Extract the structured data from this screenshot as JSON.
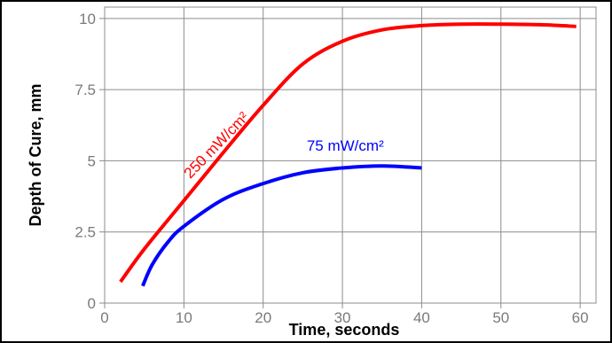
{
  "chart_data": {
    "type": "line",
    "title": "",
    "xlabel": "Time, seconds",
    "ylabel": "Depth of Cure, mm",
    "xlim": [
      0,
      62
    ],
    "ylim": [
      0,
      10.4
    ],
    "x_ticks": [
      0,
      10,
      20,
      30,
      40,
      50,
      60
    ],
    "x_tick_labels": [
      "0",
      "10",
      "20",
      "30",
      "40",
      "50",
      "60"
    ],
    "y_ticks": [
      0,
      2.5,
      5,
      7.5,
      10
    ],
    "y_tick_labels": [
      "0",
      "2.5",
      "5",
      "7.5",
      "10"
    ],
    "grid": true,
    "legend": "none",
    "series": [
      {
        "name": "250 mW/cm²",
        "color": "#ff0000",
        "x": [
          2,
          5,
          10,
          15,
          20,
          25,
          30,
          35,
          40,
          45,
          50,
          55,
          59.5
        ],
        "y": [
          0.75,
          1.9,
          3.6,
          5.3,
          6.95,
          8.4,
          9.2,
          9.6,
          9.75,
          9.8,
          9.8,
          9.78,
          9.72
        ]
      },
      {
        "name": "75 mW/cm²",
        "color": "#0000ff",
        "x": [
          4.8,
          6,
          8,
          10,
          15,
          20,
          25,
          30,
          35,
          40
        ],
        "y": [
          0.6,
          1.35,
          2.15,
          2.7,
          3.65,
          4.2,
          4.58,
          4.75,
          4.82,
          4.75
        ]
      }
    ]
  }
}
